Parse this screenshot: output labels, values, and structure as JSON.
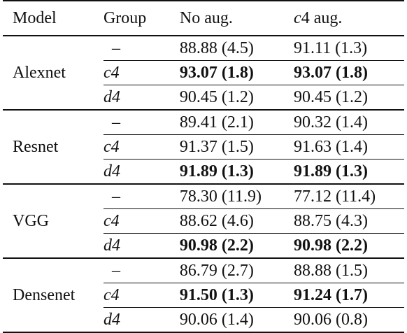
{
  "headers": {
    "model": "Model",
    "group": "Group",
    "no_aug": "No aug.",
    "c4_aug_sym": "c",
    "c4_aug_num": "4",
    "c4_aug_rest": " aug."
  },
  "rows": [
    {
      "model": "Alexnet",
      "entries": [
        {
          "group": "–",
          "group_italic": false,
          "no_aug": "88.88 (4.5)",
          "no_aug_bold": false,
          "c4_aug": "91.11 (1.3)",
          "c4_aug_bold": false
        },
        {
          "group": "c4",
          "group_italic": true,
          "no_aug": "93.07 (1.8)",
          "no_aug_bold": true,
          "c4_aug": "93.07 (1.8)",
          "c4_aug_bold": true
        },
        {
          "group": "d4",
          "group_italic": true,
          "no_aug": "90.45 (1.2)",
          "no_aug_bold": false,
          "c4_aug": "90.45 (1.2)",
          "c4_aug_bold": false
        }
      ]
    },
    {
      "model": "Resnet",
      "entries": [
        {
          "group": "–",
          "group_italic": false,
          "no_aug": "89.41 (2.1)",
          "no_aug_bold": false,
          "c4_aug": "90.32 (1.4)",
          "c4_aug_bold": false
        },
        {
          "group": "c4",
          "group_italic": true,
          "no_aug": "91.37 (1.5)",
          "no_aug_bold": false,
          "c4_aug": "91.63 (1.4)",
          "c4_aug_bold": false
        },
        {
          "group": "d4",
          "group_italic": true,
          "no_aug": "91.89 (1.3)",
          "no_aug_bold": true,
          "c4_aug": "91.89 (1.3)",
          "c4_aug_bold": true
        }
      ]
    },
    {
      "model": "VGG",
      "entries": [
        {
          "group": "–",
          "group_italic": false,
          "no_aug": "78.30 (11.9)",
          "no_aug_bold": false,
          "c4_aug": "77.12 (11.4)",
          "c4_aug_bold": false
        },
        {
          "group": "c4",
          "group_italic": true,
          "no_aug": "88.62 (4.6)",
          "no_aug_bold": false,
          "c4_aug": "88.75 (4.3)",
          "c4_aug_bold": false
        },
        {
          "group": "d4",
          "group_italic": true,
          "no_aug": "90.98 (2.2)",
          "no_aug_bold": true,
          "c4_aug": "90.98 (2.2)",
          "c4_aug_bold": true
        }
      ]
    },
    {
      "model": "Densenet",
      "entries": [
        {
          "group": "–",
          "group_italic": false,
          "no_aug": "86.79 (2.7)",
          "no_aug_bold": false,
          "c4_aug": "88.88 (1.5)",
          "c4_aug_bold": false
        },
        {
          "group": "c4",
          "group_italic": true,
          "no_aug": "91.50 (1.3)",
          "no_aug_bold": true,
          "c4_aug": "91.24 (1.7)",
          "c4_aug_bold": true
        },
        {
          "group": "d4",
          "group_italic": true,
          "no_aug": "90.06 (1.4)",
          "no_aug_bold": false,
          "c4_aug": "90.06 (0.8)",
          "c4_aug_bold": false
        }
      ]
    }
  ]
}
